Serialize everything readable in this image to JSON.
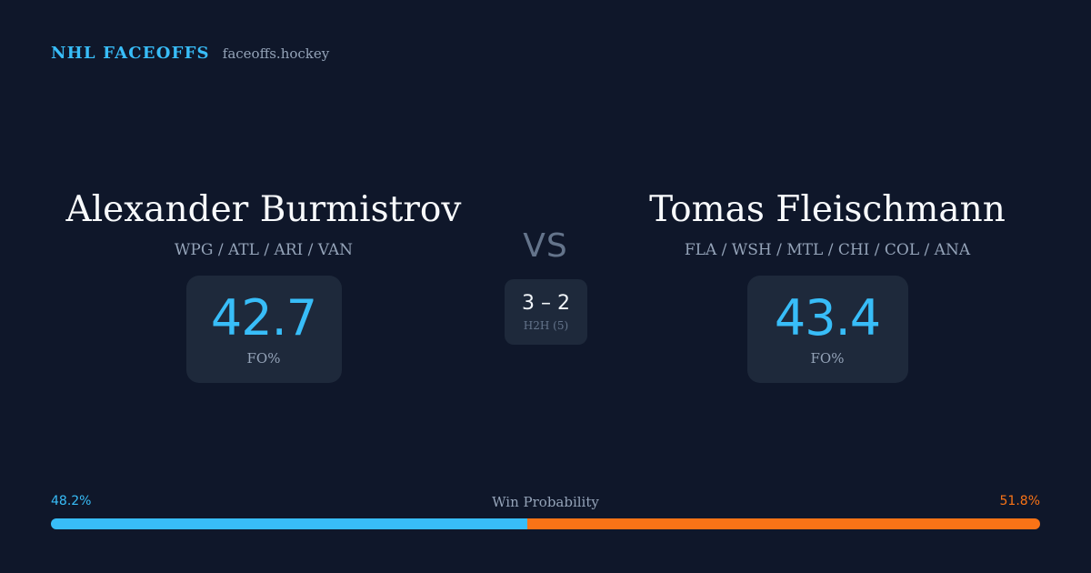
{
  "brand": {
    "name": "NHL FACEOFFS",
    "url": "faceoffs.hockey"
  },
  "player_left": {
    "name": "Alexander Burmistrov",
    "teams": "WPG / ATL / ARI / VAN",
    "stat_value": "42.7",
    "stat_label": "FO%"
  },
  "player_right": {
    "name": "Tomas Fleischmann",
    "teams": "FLA / WSH / MTL / CHI / COL / ANA",
    "stat_value": "43.4",
    "stat_label": "FO%"
  },
  "vs_label": "VS",
  "h2h": {
    "score": "3 – 2",
    "label": "H2H (5)"
  },
  "win_probability": {
    "title": "Win Probability",
    "left_text": "48.2%",
    "right_text": "51.8%",
    "left_value": 48.2,
    "right_value": 51.8
  },
  "colors": {
    "background": "#0f172a",
    "card": "#1e293b",
    "accent_left": "#38bdf8",
    "accent_right": "#f97316"
  }
}
